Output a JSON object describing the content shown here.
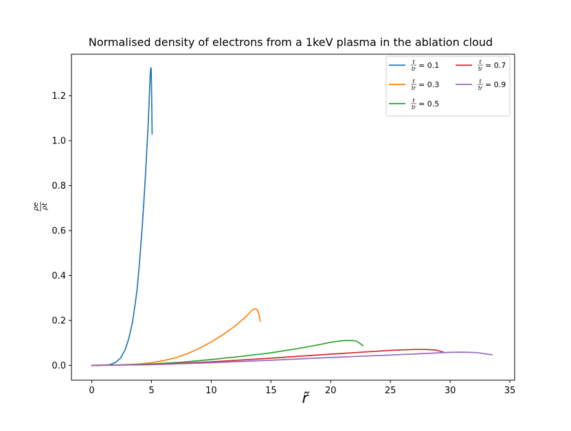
{
  "chart_data": {
    "type": "line",
    "title": "Normalised density of electrons from a 1keV plasma in the ablation cloud",
    "xlabel": "r̃",
    "ylabel": {
      "numerator": "ρe",
      "denominator": "ρt"
    },
    "xlim": [
      -1.7,
      35.4
    ],
    "ylim": [
      -0.066,
      1.385
    ],
    "xticks": [
      0,
      5,
      10,
      15,
      20,
      25,
      30,
      35
    ],
    "xtick_labels": [
      "0",
      "5",
      "10",
      "15",
      "20",
      "25",
      "30",
      "35"
    ],
    "yticks": [
      0.0,
      0.2,
      0.4,
      0.6,
      0.8,
      1.0,
      1.2
    ],
    "ytick_labels": [
      "0.0",
      "0.2",
      "0.4",
      "0.6",
      "0.8",
      "1.0",
      "1.2"
    ],
    "grid": false,
    "legend_location": "upper right",
    "legend_columns": 2,
    "series": [
      {
        "name": "t/tr = 0.1",
        "label_ratio": {
          "numerator": "t",
          "denominator": "tr"
        },
        "label_value": "= 0.1",
        "color": "#1f77b4",
        "x": [
          0,
          0.5,
          1.0,
          1.5,
          2.0,
          2.4,
          2.8,
          3.1,
          3.4,
          3.6,
          3.8,
          4.0,
          4.2,
          4.35,
          4.5,
          4.6,
          4.7,
          4.78,
          4.85,
          4.9,
          4.95,
          4.98,
          5.02,
          5.05
        ],
        "y": [
          0.0,
          0.0,
          0.0005,
          0.003,
          0.013,
          0.032,
          0.07,
          0.12,
          0.19,
          0.26,
          0.34,
          0.46,
          0.6,
          0.72,
          0.85,
          0.95,
          1.05,
          1.15,
          1.24,
          1.3,
          1.325,
          1.32,
          1.18,
          1.03
        ]
      },
      {
        "name": "t/tr = 0.3",
        "label_ratio": {
          "numerator": "t",
          "denominator": "tr"
        },
        "label_value": "= 0.3",
        "color": "#ff7f0e",
        "x": [
          0,
          2,
          4,
          5,
          6,
          7,
          8,
          9,
          10,
          11,
          12,
          13,
          13.4,
          13.7,
          13.85,
          14.0,
          14.1
        ],
        "y": [
          0.0,
          0.001,
          0.006,
          0.012,
          0.021,
          0.034,
          0.052,
          0.076,
          0.104,
          0.137,
          0.175,
          0.222,
          0.245,
          0.253,
          0.248,
          0.225,
          0.197
        ]
      },
      {
        "name": "t/tr = 0.5",
        "label_ratio": {
          "numerator": "t",
          "denominator": "tr"
        },
        "label_value": "= 0.5",
        "color": "#2ca02c",
        "x": [
          0,
          2.5,
          5,
          7.5,
          10,
          12.5,
          15,
          17.5,
          19,
          20,
          21,
          21.6,
          22.1,
          22.4,
          22.7
        ],
        "y": [
          0.0,
          0.002,
          0.006,
          0.014,
          0.026,
          0.04,
          0.056,
          0.077,
          0.092,
          0.103,
          0.11,
          0.111,
          0.109,
          0.1,
          0.088
        ]
      },
      {
        "name": "t/tr = 0.7",
        "label_ratio": {
          "numerator": "t",
          "denominator": "tr"
        },
        "label_value": "= 0.7",
        "color": "#d62728",
        "x": [
          0,
          5,
          10,
          15,
          20,
          25,
          27,
          28,
          28.8,
          29.2,
          29.5
        ],
        "y": [
          0.0,
          0.004,
          0.016,
          0.032,
          0.05,
          0.067,
          0.071,
          0.071,
          0.068,
          0.063,
          0.058
        ]
      },
      {
        "name": "t/tr = 0.9",
        "label_ratio": {
          "numerator": "t",
          "denominator": "tr"
        },
        "label_value": "= 0.9",
        "color": "#9467bd",
        "x": [
          0,
          5,
          10,
          15,
          20,
          25,
          28,
          30,
          31,
          32.2,
          33,
          33.5
        ],
        "y": [
          0.0,
          0.003,
          0.012,
          0.023,
          0.035,
          0.046,
          0.053,
          0.058,
          0.059,
          0.057,
          0.051,
          0.047
        ]
      }
    ]
  }
}
